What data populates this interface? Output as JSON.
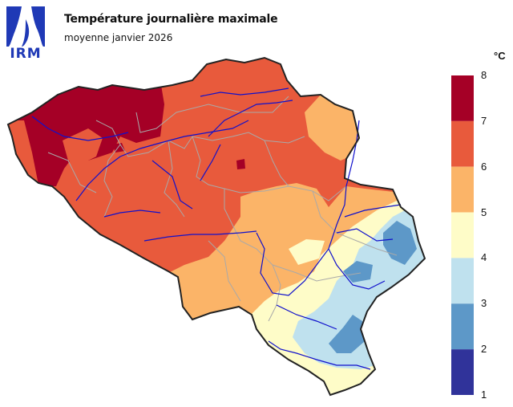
{
  "header": {
    "logo_text": "IRM",
    "title": "Température journalière maximale",
    "subtitle": "moyenne janvier 2026"
  },
  "legend": {
    "unit": "°C",
    "ticks": [
      "8",
      "7",
      "6",
      "5",
      "4",
      "3",
      "2",
      "1"
    ],
    "classes": [
      {
        "range": "7-8",
        "color": "#a50026"
      },
      {
        "range": "6-7",
        "color": "#e85a3c"
      },
      {
        "range": "5-6",
        "color": "#fbb468"
      },
      {
        "range": "4-5",
        "color": "#fefcc8"
      },
      {
        "range": "3-4",
        "color": "#bfe1ee"
      },
      {
        "range": "2-3",
        "color": "#5d98c8"
      },
      {
        "range": "1-2",
        "color": "#30339a"
      }
    ]
  },
  "colors": {
    "logo_blue": "#1f39b6",
    "river": "#1010cc",
    "border": "#222222",
    "province_lines": "#a9a9a9"
  }
}
